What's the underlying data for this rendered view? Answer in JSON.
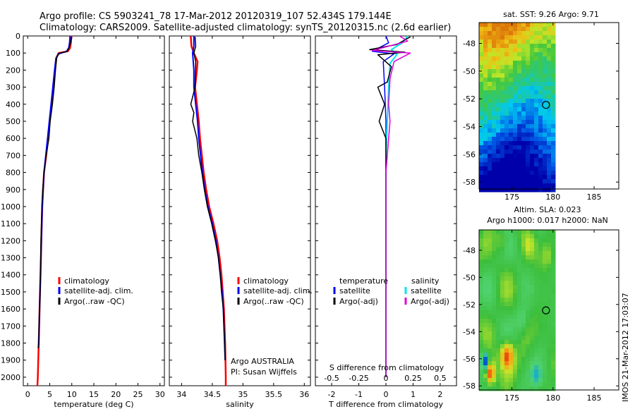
{
  "header": {
    "line1": "Argo profile: CS 5903241_78 17-Mar-2012 20120319_107 52.434S 179.144E",
    "line2": "Climatology: CARS2009. Satellite-adjusted climatology: synTS_20120315.nc (2.6d earlier)"
  },
  "colors": {
    "climatology": "#ff0000",
    "satellite": "#0000ff",
    "argo": "#000000",
    "sat_diff": "#00e5ee",
    "argo_diff": "#dd00dd"
  },
  "side_label": "IMOS 21-Mar-2012 17:03:07",
  "chart_data": [
    {
      "id": "temperature",
      "type": "line",
      "xlabel": "temperature (deg C)",
      "ylabel": "",
      "xlim": [
        -1,
        31
      ],
      "ylim": [
        2050,
        0
      ],
      "xticks": [
        0,
        5,
        10,
        15,
        20,
        25,
        30
      ],
      "yticks": [
        0,
        100,
        200,
        300,
        400,
        500,
        600,
        700,
        800,
        900,
        1000,
        1100,
        1200,
        1300,
        1400,
        1500,
        1600,
        1700,
        1800,
        1900,
        2000
      ],
      "legend": {
        "position": "lower-center",
        "entries": [
          "climatology",
          "satellite-adj. clim.",
          "Argo(..raw -QC)"
        ]
      },
      "series": [
        {
          "name": "climatology",
          "color": "#ff0000",
          "width": 2.5,
          "points": [
            [
              9.9,
              0
            ],
            [
              9.8,
              40
            ],
            [
              9.6,
              70
            ],
            [
              9.1,
              90
            ],
            [
              7.0,
              100
            ],
            [
              6.5,
              130
            ],
            [
              6.2,
              200
            ],
            [
              5.8,
              300
            ],
            [
              5.4,
              400
            ],
            [
              5.0,
              500
            ],
            [
              4.6,
              600
            ],
            [
              4.2,
              700
            ],
            [
              3.7,
              800
            ],
            [
              3.5,
              900
            ],
            [
              3.3,
              1000
            ],
            [
              3.1,
              1200
            ],
            [
              2.9,
              1400
            ],
            [
              2.7,
              1600
            ],
            [
              2.5,
              1800
            ],
            [
              2.3,
              2000
            ],
            [
              2.2,
              2050
            ]
          ]
        },
        {
          "name": "satellite-adj. clim.",
          "color": "#0000ff",
          "width": 2.0,
          "points": [
            [
              9.6,
              0
            ],
            [
              9.5,
              40
            ],
            [
              9.3,
              70
            ],
            [
              8.8,
              90
            ],
            [
              7.0,
              105
            ],
            [
              6.4,
              130
            ],
            [
              6.1,
              200
            ],
            [
              5.7,
              300
            ],
            [
              5.3,
              400
            ],
            [
              4.9,
              500
            ],
            [
              4.5,
              600
            ],
            [
              4.1,
              700
            ],
            [
              3.7,
              800
            ],
            [
              3.5,
              900
            ],
            [
              3.3,
              1000
            ],
            [
              3.1,
              1200
            ],
            [
              2.9,
              1400
            ],
            [
              2.7,
              1600
            ],
            [
              2.5,
              1800
            ],
            [
              2.4,
              1830
            ]
          ]
        },
        {
          "name": "Argo(..raw -QC)",
          "color": "#000000",
          "width": 1.5,
          "points": [
            [
              10.0,
              5
            ],
            [
              9.7,
              40
            ],
            [
              9.4,
              70
            ],
            [
              8.9,
              90
            ],
            [
              7.3,
              100
            ],
            [
              6.6,
              120
            ],
            [
              6.3,
              200
            ],
            [
              6.0,
              300
            ],
            [
              5.6,
              400
            ],
            [
              5.1,
              500
            ],
            [
              4.8,
              600
            ],
            [
              4.2,
              700
            ],
            [
              3.7,
              800
            ],
            [
              3.4,
              900
            ],
            [
              3.2,
              1000
            ],
            [
              3.0,
              1200
            ],
            [
              2.9,
              1400
            ],
            [
              2.7,
              1600
            ],
            [
              2.5,
              1800
            ],
            [
              2.4,
              1830
            ]
          ]
        }
      ]
    },
    {
      "id": "salinity",
      "type": "line",
      "xlabel": "salinity",
      "ylabel": "",
      "xlim": [
        33.8,
        36.1
      ],
      "ylim": [
        2050,
        0
      ],
      "xticks": [
        34,
        34.5,
        35,
        35.5,
        36
      ],
      "legend": {
        "position": "lower-center",
        "entries": [
          "climatology",
          "satellite-adj. clim.",
          "Argo(..raw -QC)"
        ]
      },
      "annotations": [
        "Argo AUSTRALIA",
        "PI: Susan Wijffels"
      ],
      "series": [
        {
          "name": "climatology",
          "color": "#ff0000",
          "width": 2.5,
          "points": [
            [
              34.15,
              0
            ],
            [
              34.16,
              60
            ],
            [
              34.2,
              100
            ],
            [
              34.26,
              150
            ],
            [
              34.25,
              200
            ],
            [
              34.22,
              300
            ],
            [
              34.25,
              400
            ],
            [
              34.28,
              500
            ],
            [
              34.3,
              600
            ],
            [
              34.33,
              700
            ],
            [
              34.36,
              800
            ],
            [
              34.4,
              900
            ],
            [
              34.45,
              1000
            ],
            [
              34.52,
              1100
            ],
            [
              34.58,
              1200
            ],
            [
              34.62,
              1300
            ],
            [
              34.65,
              1400
            ],
            [
              34.67,
              1500
            ],
            [
              34.69,
              1600
            ],
            [
              34.71,
              1800
            ],
            [
              34.72,
              2000
            ],
            [
              34.72,
              2050
            ]
          ]
        },
        {
          "name": "satellite-adj. clim.",
          "color": "#0000ff",
          "width": 2.0,
          "points": [
            [
              34.2,
              0
            ],
            [
              34.2,
              60
            ],
            [
              34.18,
              100
            ],
            [
              34.2,
              200
            ],
            [
              34.2,
              300
            ],
            [
              34.23,
              400
            ],
            [
              34.26,
              500
            ],
            [
              34.28,
              600
            ],
            [
              34.31,
              700
            ],
            [
              34.34,
              800
            ],
            [
              34.38,
              900
            ],
            [
              34.43,
              1000
            ],
            [
              34.5,
              1100
            ],
            [
              34.56,
              1200
            ],
            [
              34.6,
              1300
            ],
            [
              34.63,
              1400
            ],
            [
              34.66,
              1500
            ],
            [
              34.68,
              1600
            ],
            [
              34.7,
              1800
            ],
            [
              34.71,
              1900
            ]
          ]
        },
        {
          "name": "Argo(..raw -QC)",
          "color": "#000000",
          "width": 1.5,
          "points": [
            [
              34.22,
              5
            ],
            [
              34.23,
              60
            ],
            [
              34.2,
              100
            ],
            [
              34.23,
              150
            ],
            [
              34.22,
              300
            ],
            [
              34.15,
              400
            ],
            [
              34.2,
              450
            ],
            [
              34.18,
              500
            ],
            [
              34.25,
              600
            ],
            [
              34.28,
              700
            ],
            [
              34.33,
              800
            ],
            [
              34.37,
              900
            ],
            [
              34.42,
              1000
            ],
            [
              34.49,
              1100
            ],
            [
              34.55,
              1200
            ],
            [
              34.6,
              1300
            ],
            [
              34.63,
              1400
            ],
            [
              34.65,
              1500
            ],
            [
              34.68,
              1600
            ],
            [
              34.7,
              1800
            ],
            [
              34.71,
              1900
            ]
          ]
        }
      ]
    },
    {
      "id": "difference",
      "type": "line",
      "xlabel": "T difference from climatology",
      "ylabel": "",
      "top_axis_label": "S difference from climatology",
      "xlim": [
        -2.6,
        2.6
      ],
      "ylim": [
        2050,
        0
      ],
      "xticks": [
        -2,
        -1,
        0,
        1,
        2
      ],
      "top_ticks": [
        {
          "label": "-0.5",
          "t_value": -2.0
        },
        {
          "label": "-0.25",
          "t_value": -1.0
        },
        {
          "label": "0",
          "t_value": 0
        },
        {
          "label": "0.25",
          "t_value": 1.0
        },
        {
          "label": "0.5",
          "t_value": 2.0
        }
      ],
      "legend": {
        "position": "lower-center",
        "temperature_title": "temperature",
        "salinity_title": "salinity",
        "entries": [
          "satellite",
          "Argo(-adj)",
          "satellite",
          "Argo(-adj)"
        ]
      },
      "series": [
        {
          "name": "temperature satellite",
          "color": "#0000ff",
          "width": 1.5,
          "points": [
            [
              0,
              0
            ],
            [
              0.1,
              40
            ],
            [
              -0.5,
              90
            ],
            [
              0.3,
              105
            ],
            [
              -0.1,
              150
            ],
            [
              -0.05,
              300
            ],
            [
              0,
              500
            ],
            [
              0,
              1000
            ],
            [
              0,
              2000
            ]
          ]
        },
        {
          "name": "salinity satellite",
          "color": "#00e5ee",
          "width": 2.0,
          "points": [
            [
              0.8,
              0
            ],
            [
              0.6,
              40
            ],
            [
              0.2,
              80
            ],
            [
              0.4,
              110
            ],
            [
              0.15,
              160
            ],
            [
              0.1,
              300
            ],
            [
              0.05,
              500
            ],
            [
              0,
              700
            ],
            [
              0,
              1000
            ],
            [
              0,
              2000
            ]
          ]
        },
        {
          "name": "temperature Argo(-adj)",
          "color": "#000000",
          "width": 1.5,
          "points": [
            [
              0.9,
              5
            ],
            [
              0.4,
              50
            ],
            [
              -0.6,
              80
            ],
            [
              0.7,
              95
            ],
            [
              -0.3,
              110
            ],
            [
              0.2,
              180
            ],
            [
              0.05,
              270
            ],
            [
              -0.3,
              300
            ],
            [
              -0.05,
              400
            ],
            [
              -0.25,
              500
            ],
            [
              0,
              600
            ],
            [
              0,
              1000
            ],
            [
              0,
              2000
            ]
          ]
        },
        {
          "name": "salinity Argo(-adj)",
          "color": "#dd00dd",
          "width": 1.5,
          "points": [
            [
              0.5,
              0
            ],
            [
              0.8,
              30
            ],
            [
              -0.5,
              85
            ],
            [
              0.9,
              100
            ],
            [
              0.3,
              150
            ],
            [
              0.15,
              250
            ],
            [
              0.1,
              400
            ],
            [
              0.15,
              500
            ],
            [
              0.1,
              600
            ],
            [
              0,
              800
            ],
            [
              0,
              1000
            ],
            [
              0,
              2000
            ]
          ]
        }
      ]
    },
    {
      "id": "sst-map",
      "type": "heatmap",
      "title": "sat. SST: 9.26  Argo: 9.71",
      "xlim": [
        171,
        188
      ],
      "ylim": [
        -58.5,
        -46.5
      ],
      "xticks": [
        175,
        180,
        185
      ],
      "yticks": [
        -48,
        -50,
        -52,
        -54,
        -56,
        -58
      ],
      "data_extent": [
        171,
        180,
        -58.5,
        -46.5
      ],
      "marker": {
        "lon": 179.144,
        "lat": -52.434
      }
    },
    {
      "id": "sla-map",
      "type": "heatmap",
      "title_line1": "Altim. SLA: 0.023",
      "title_line2": "Argo h1000: 0.017  h2000: NaN",
      "xlim": [
        171,
        188
      ],
      "ylim": [
        -58.3,
        -46.5
      ],
      "xticks": [
        175,
        180,
        185
      ],
      "yticks": [
        -48,
        -50,
        -52,
        -54,
        -56,
        -58
      ],
      "data_extent": [
        171,
        180,
        -58.3,
        -46.5
      ],
      "marker": {
        "lon": 179.144,
        "lat": -52.434
      }
    }
  ]
}
